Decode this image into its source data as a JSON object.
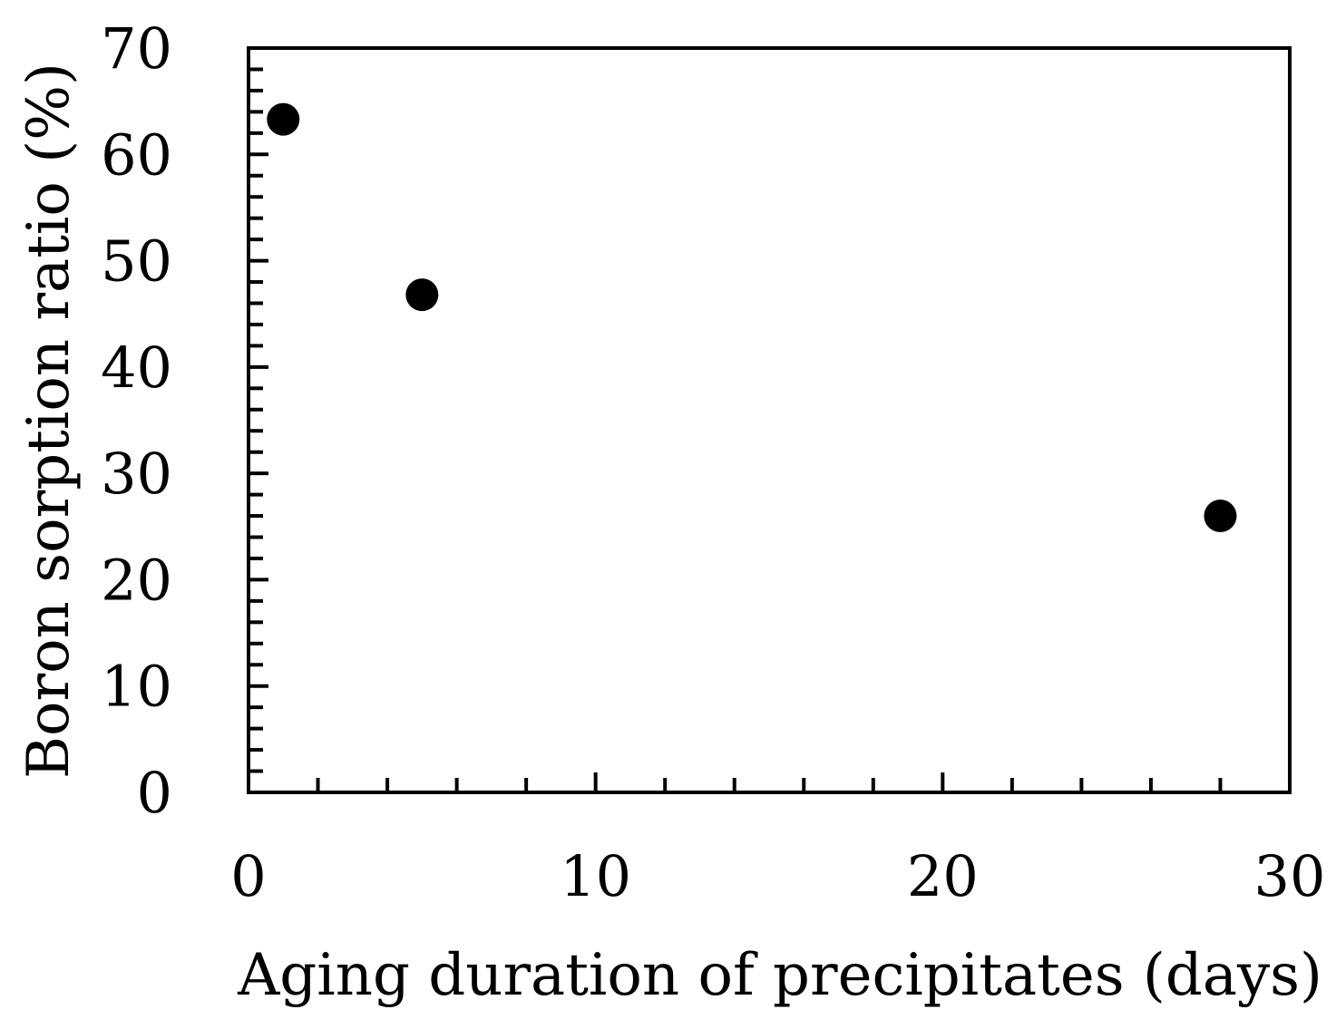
{
  "chart_data": {
    "type": "scatter",
    "title": "",
    "xlabel": "Aging duration of precipitates (days)",
    "ylabel": "Boron sorption ratio (%)",
    "xlim": [
      0,
      30
    ],
    "ylim": [
      0,
      70
    ],
    "x_ticks": [
      "0",
      "10",
      "20",
      "30"
    ],
    "y_ticks": [
      "0",
      "10",
      "20",
      "30",
      "40",
      "50",
      "60",
      "70"
    ],
    "grid": false,
    "legend": "none",
    "marker_color": "#000000",
    "series": [
      {
        "x": [
          1,
          5,
          28
        ],
        "y": [
          63.3,
          46.8,
          26.0
        ]
      }
    ]
  }
}
